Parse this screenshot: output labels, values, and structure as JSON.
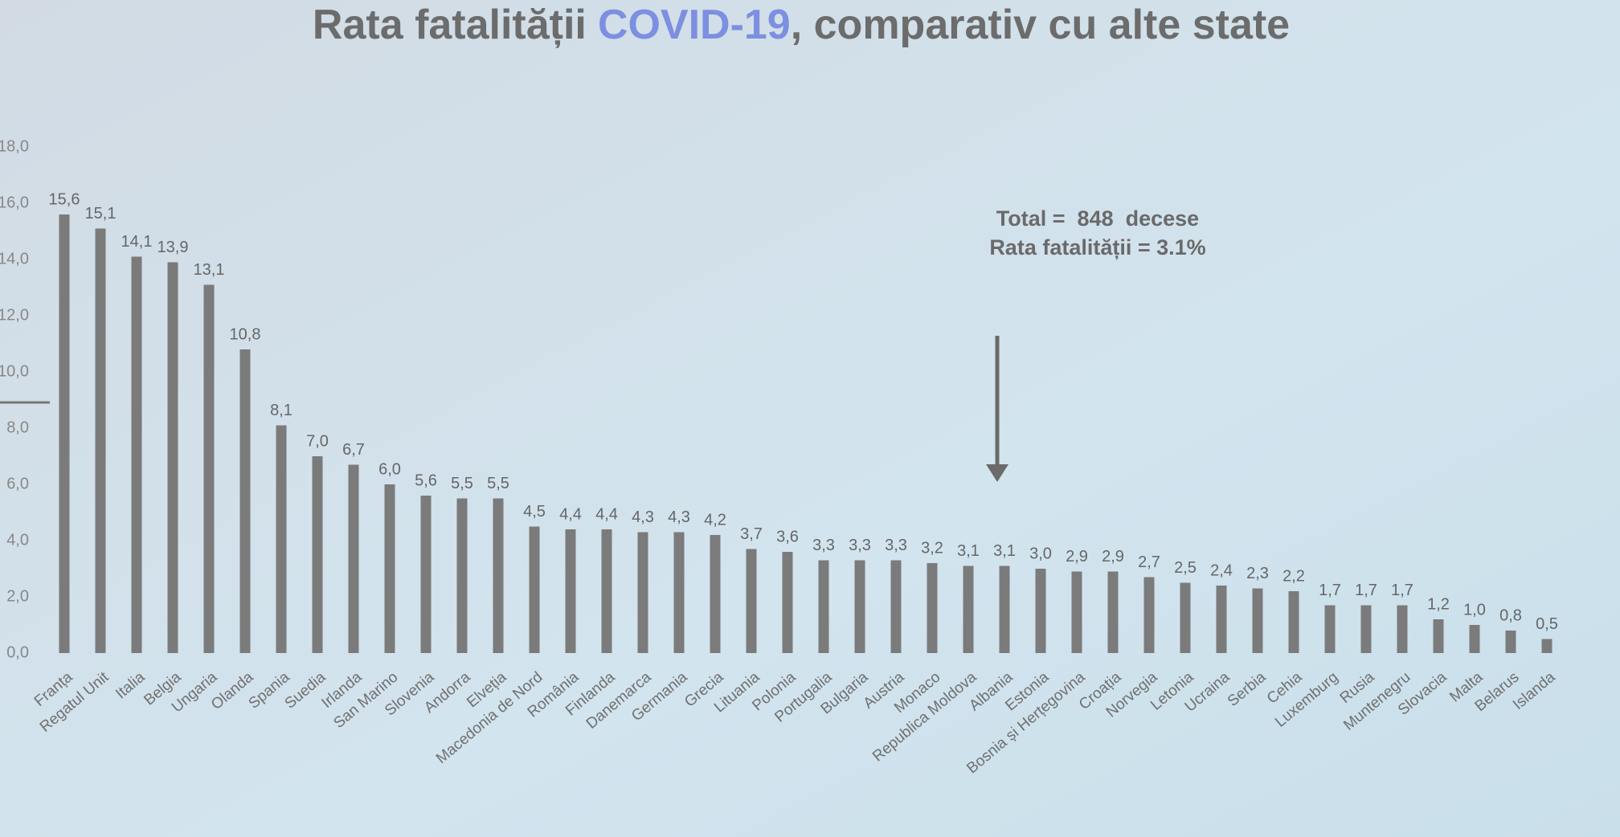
{
  "chart_data": {
    "type": "bar",
    "title": [
      "Rata fatalității",
      "COVID-19",
      ", comparativ cu alte state"
    ],
    "annotations": [
      "Total =  848  decese",
      "Rata fatalității = 3.1%"
    ],
    "categories": [
      "Franța",
      "Regatul Unit",
      "Italia",
      "Belgia",
      "Ungaria",
      "Olanda",
      "Spania",
      "Suedia",
      "Irlanda",
      "San Marino",
      "Slovenia",
      "Andorra",
      "Elveția",
      "Macedonia de Nord",
      "România",
      "Finlanda",
      "Danemarca",
      "Germania",
      "Grecia",
      "Lituania",
      "Polonia",
      "Portugalia",
      "Bulgaria",
      "Austria",
      "Monaco",
      "Republica Moldova",
      "Albania",
      "Estonia",
      "Bosnia și Herțegovina",
      "Croația",
      "Norvegia",
      "Letonia",
      "Ucraina",
      "Serbia",
      "Cehia",
      "Luxemburg",
      "Rusia",
      "Muntenegru",
      "Slovacia",
      "Malta",
      "Belarus",
      "Islanda"
    ],
    "values": [
      15.6,
      15.1,
      14.1,
      13.9,
      13.1,
      10.8,
      8.1,
      7.0,
      6.7,
      6.0,
      5.6,
      5.5,
      5.5,
      4.5,
      4.4,
      4.4,
      4.3,
      4.3,
      4.2,
      3.7,
      3.6,
      3.3,
      3.3,
      3.3,
      3.2,
      3.1,
      3.1,
      3.0,
      2.9,
      2.9,
      2.7,
      2.5,
      2.4,
      2.3,
      2.2,
      1.7,
      1.7,
      1.7,
      1.2,
      1.0,
      0.8,
      0.5
    ],
    "value_labels": [
      "15,6",
      "15,1",
      "14,1",
      "13,9",
      "13,1",
      "10,8",
      "8,1",
      "7,0",
      "6,7",
      "6,0",
      "5,6",
      "5,5",
      "5,5",
      "4,5",
      "4,4",
      "4,4",
      "4,3",
      "4,3",
      "4,2",
      "3,7",
      "3,6",
      "3,3",
      "3,3",
      "3,3",
      "3,2",
      "3,1",
      "3,1",
      "3,0",
      "2,9",
      "2,9",
      "2,7",
      "2,5",
      "2,4",
      "2,3",
      "2,2",
      "1,7",
      "1,7",
      "1,7",
      "1,2",
      "1,0",
      "0,8",
      "0,5"
    ],
    "color": "#7b7b7b",
    "ylim": [
      0,
      18
    ],
    "yticks": [
      {
        "value": 0,
        "label": "0,0"
      },
      {
        "value": 2,
        "label": "2,0"
      },
      {
        "value": 4,
        "label": "4,0"
      },
      {
        "value": 6,
        "label": "6,0"
      },
      {
        "value": 8,
        "label": "8,0"
      },
      {
        "value": 10,
        "label": "10,0"
      },
      {
        "value": 12,
        "label": "12,0"
      },
      {
        "value": 14,
        "label": "14,0"
      },
      {
        "value": 16,
        "label": "16,0"
      },
      {
        "value": 18,
        "label": "18,0"
      }
    ]
  }
}
